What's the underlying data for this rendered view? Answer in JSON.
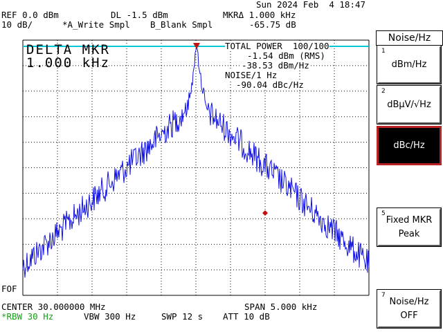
{
  "header": {
    "date": "Sun 2024 Feb  4 18:47",
    "ref": "REF 0.0 dBm",
    "dl": "DL -1.5 dBm",
    "mkr_delta": "MKRΔ 1.000 kHz",
    "scale": "10 dB/",
    "trace_a": "*A_Write Smpl",
    "trace_b": "B_Blank Smpl",
    "mkr_delta_value": "-65.75 dB"
  },
  "screen": {
    "delta_label": "DELTA MKR",
    "delta_value": "1.000 kHz",
    "total_power": "TOTAL POWER  100/100",
    "rms": "-1.54 dBm (RMS)",
    "dbm_hz": "-38.53 dBm/Hz",
    "noise_label": "NOISE/1 Hz",
    "noise_value": "-90.04 dBc/Hz",
    "fof": "FOF"
  },
  "footer": {
    "center": "CENTER 30.000000 MHz",
    "span": "SPAN 5.000 kHz",
    "rbw": "*RBW 30 Hz",
    "vbw": "VBW 300 Hz",
    "swp": "SWP 12 s",
    "att": "ATT 10 dB"
  },
  "softkeys": {
    "title": "Noise/Hz",
    "keys": [
      {
        "num": "1",
        "line1": "dBm/Hz",
        "line2": ""
      },
      {
        "num": "2",
        "line1": "dBµV/√Hz",
        "line2": ""
      },
      {
        "num": "",
        "line1": "dBc/Hz",
        "line2": ""
      },
      {
        "num": "5",
        "line1": "Fixed MKR",
        "line2": "Peak"
      },
      {
        "num": "7",
        "line1": "Noise/Hz",
        "line2": "OFF"
      }
    ]
  },
  "colors": {
    "trace": "#1010e0",
    "marker": "#c01010",
    "ref_line": "#00c8d8",
    "grid": "#000000",
    "rbw_text": "#16a016"
  }
}
